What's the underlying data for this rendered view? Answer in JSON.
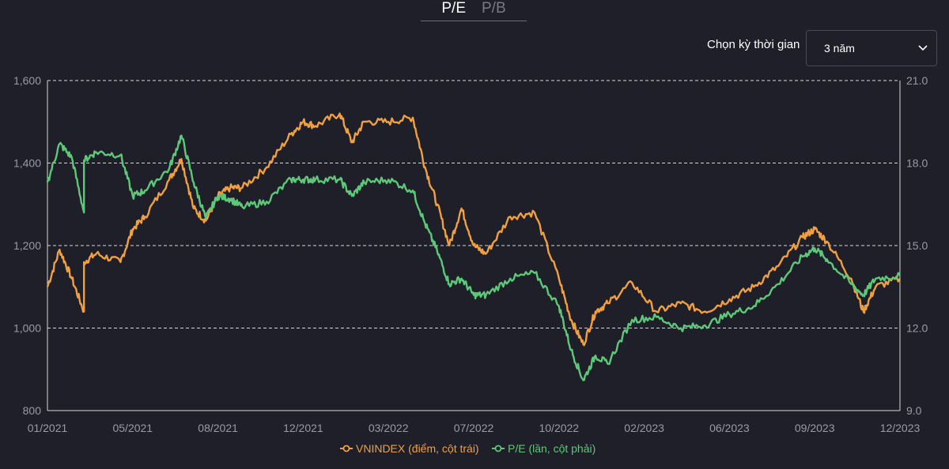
{
  "tabs": [
    {
      "label": "P/E",
      "active": true
    },
    {
      "label": "P/B",
      "active": false
    }
  ],
  "period": {
    "label": "Chọn kỳ thời gian",
    "selected": "3 năm"
  },
  "colors": {
    "vnindex": "#f0a040",
    "pe": "#5cc878",
    "grid": "#d8d8d8"
  },
  "chart_data": {
    "type": "line",
    "x_tick_labels": [
      "01/2021",
      "05/2021",
      "08/2021",
      "12/2021",
      "03/2022",
      "07/2022",
      "10/2022",
      "02/2023",
      "06/2023",
      "09/2023",
      "12/2023"
    ],
    "y_left": {
      "ticks": [
        "800",
        "1,000",
        "1,200",
        "1,400",
        "1,600"
      ],
      "range": [
        800,
        1600
      ]
    },
    "y_right": {
      "ticks": [
        "9.0",
        "12.0",
        "15.0",
        "18.0",
        "21.0"
      ],
      "range": [
        9,
        21
      ]
    },
    "grid": "horizontal dashed",
    "legend_position": "bottom-center",
    "series": [
      {
        "name": "VNINDEX (điểm, cột trái)",
        "axis": "left",
        "color": "#f0a040",
        "x": [
          "2021-01",
          "2021-01",
          "2021-02",
          "2021-02",
          "2021-02",
          "2021-03",
          "2021-04",
          "2021-04",
          "2021-05",
          "2021-06",
          "2021-06",
          "2021-07",
          "2021-07",
          "2021-08",
          "2021-08",
          "2021-09",
          "2021-10",
          "2021-11",
          "2021-11",
          "2021-12",
          "2022-01",
          "2022-01",
          "2022-02",
          "2022-03",
          "2022-04",
          "2022-04",
          "2022-05",
          "2022-05",
          "2022-06",
          "2022-06",
          "2022-07",
          "2022-08",
          "2022-09",
          "2022-10",
          "2022-10",
          "2022-11",
          "2022-11",
          "2022-12",
          "2023-01",
          "2023-02",
          "2023-03",
          "2023-04",
          "2023-05",
          "2023-06",
          "2023-07",
          "2023-08",
          "2023-08",
          "2023-09",
          "2023-10",
          "2023-10",
          "2023-11",
          "2023-12"
        ],
        "values": [
          1100,
          1190,
          1120,
          1040,
          1160,
          1180,
          1160,
          1240,
          1270,
          1360,
          1410,
          1290,
          1260,
          1320,
          1340,
          1340,
          1390,
          1470,
          1500,
          1490,
          1520,
          1450,
          1500,
          1500,
          1510,
          1390,
          1300,
          1200,
          1290,
          1200,
          1180,
          1270,
          1280,
          1120,
          1020,
          960,
          1040,
          1060,
          1110,
          1040,
          1060,
          1040,
          1070,
          1100,
          1150,
          1220,
          1240,
          1210,
          1120,
          1040,
          1100,
          1120
        ]
      },
      {
        "name": "P/E (lần, cột phải)",
        "axis": "right",
        "color": "#5cc878",
        "x": [
          "2021-01",
          "2021-01",
          "2021-02",
          "2021-02",
          "2021-02",
          "2021-03",
          "2021-04",
          "2021-04",
          "2021-05",
          "2021-06",
          "2021-06",
          "2021-07",
          "2021-07",
          "2021-08",
          "2021-08",
          "2021-09",
          "2021-10",
          "2021-11",
          "2021-11",
          "2021-12",
          "2022-01",
          "2022-01",
          "2022-02",
          "2022-03",
          "2022-04",
          "2022-04",
          "2022-05",
          "2022-05",
          "2022-06",
          "2022-06",
          "2022-07",
          "2022-08",
          "2022-09",
          "2022-10",
          "2022-10",
          "2022-11",
          "2022-11",
          "2022-12",
          "2023-01",
          "2023-02",
          "2023-03",
          "2023-04",
          "2023-05",
          "2023-06",
          "2023-07",
          "2023-08",
          "2023-08",
          "2023-09",
          "2023-10",
          "2023-10",
          "2023-11",
          "2023-12"
        ],
        "values": [
          17.3,
          18.7,
          18.2,
          16.2,
          18.1,
          18.4,
          18.3,
          16.8,
          17.0,
          17.8,
          19.0,
          17.3,
          16.0,
          16.8,
          16.7,
          16.4,
          16.6,
          17.4,
          17.4,
          17.4,
          17.4,
          16.8,
          17.3,
          17.4,
          17.0,
          15.8,
          14.8,
          13.6,
          13.8,
          13.2,
          13.2,
          13.8,
          14.0,
          12.8,
          11.2,
          10.1,
          11.0,
          10.7,
          12.3,
          12.4,
          12.0,
          12.1,
          12.5,
          12.8,
          13.6,
          14.6,
          14.9,
          14.5,
          13.6,
          13.2,
          13.8,
          13.9
        ]
      }
    ]
  }
}
